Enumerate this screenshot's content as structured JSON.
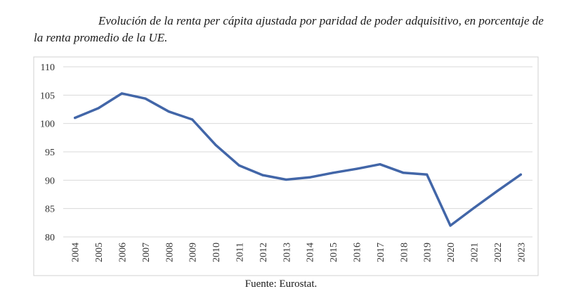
{
  "caption": "Evolución de la renta per cápita ajustada por paridad de poder adquisitivo, en porcentaje de la renta promedio de la UE.",
  "source": "Fuente: Eurostat.",
  "chart_data": {
    "type": "line",
    "title": "",
    "xlabel": "",
    "ylabel": "",
    "categories": [
      "2004",
      "2005",
      "2006",
      "2007",
      "2008",
      "2009",
      "2010",
      "2011",
      "2012",
      "2013",
      "2014",
      "2015",
      "2016",
      "2017",
      "2018",
      "2019",
      "2020",
      "2021",
      "2022",
      "2023"
    ],
    "series": [
      {
        "values": [
          101,
          102.7,
          105.3,
          104.4,
          102.1,
          100.7,
          96.2,
          92.6,
          90.9,
          90.1,
          90.5,
          91.3,
          92.0,
          92.8,
          91.3,
          91.0,
          82.0,
          85.1,
          88.1,
          91.0
        ],
        "color": "#4266a8"
      }
    ],
    "ylim": [
      80,
      110
    ],
    "yticks": [
      80,
      85,
      90,
      95,
      100,
      105,
      110
    ],
    "grid": true,
    "legend": "none"
  }
}
